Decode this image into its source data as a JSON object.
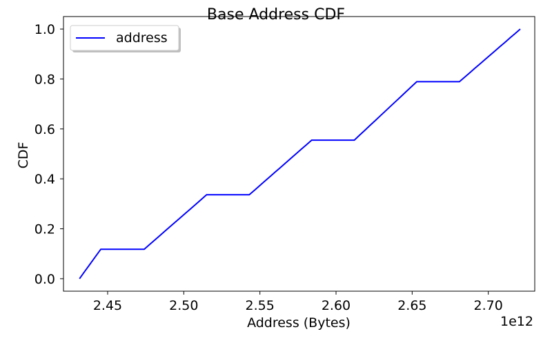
{
  "chart_data": {
    "type": "line",
    "title": "Base Address CDF",
    "xlabel": "Address (Bytes)",
    "ylabel": "CDF",
    "x_offset_label": "1e12",
    "xlim": [
      2.421,
      2.7305
    ],
    "ylim": [
      -0.05,
      1.05
    ],
    "x_ticks": [
      2.45,
      2.5,
      2.55,
      2.6,
      2.65,
      2.7
    ],
    "x_tick_labels": [
      "2.45",
      "2.50",
      "2.55",
      "2.60",
      "2.65",
      "2.70"
    ],
    "y_ticks": [
      0.0,
      0.2,
      0.4,
      0.6,
      0.8,
      1.0
    ],
    "y_tick_labels": [
      "0.0",
      "0.2",
      "0.4",
      "0.6",
      "0.8",
      "1.0"
    ],
    "grid": false,
    "legend": {
      "position": "top-left",
      "shadow": true
    },
    "series": [
      {
        "name": "address",
        "color": "#0000ff",
        "x": [
          2.4315,
          2.4455,
          2.474,
          2.515,
          2.543,
          2.584,
          2.612,
          2.653,
          2.681,
          2.721
        ],
        "y": [
          0.0,
          0.118,
          0.118,
          0.336,
          0.336,
          0.555,
          0.555,
          0.789,
          0.789,
          1.0
        ]
      }
    ]
  }
}
